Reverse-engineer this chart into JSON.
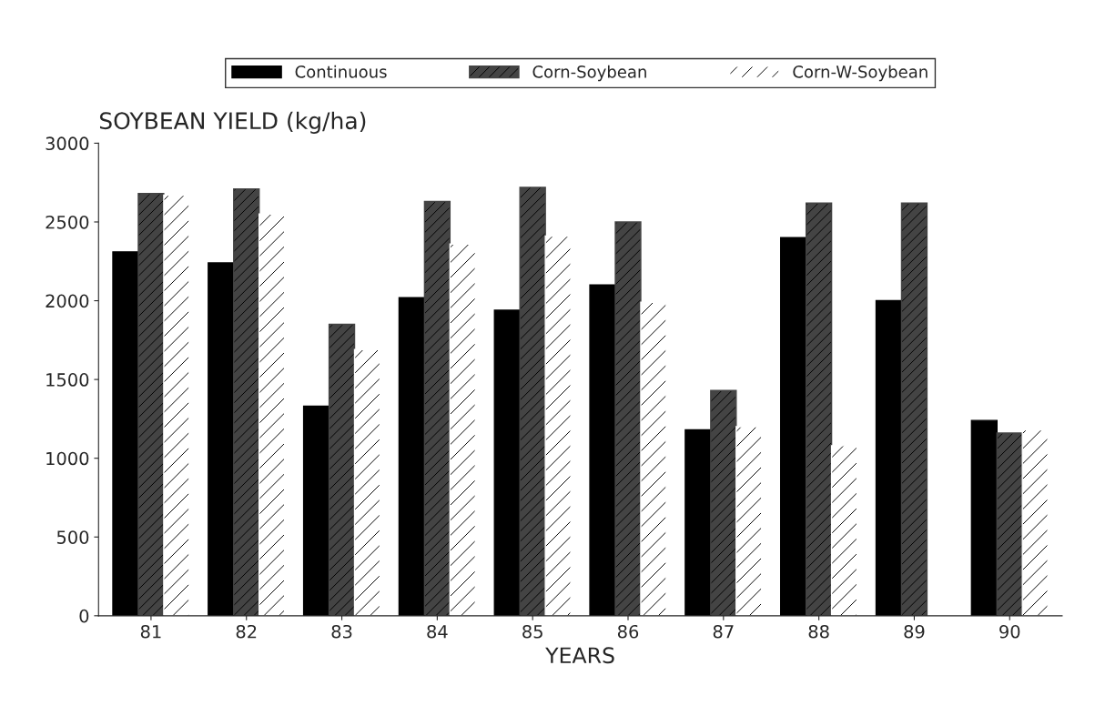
{
  "chart_data": {
    "type": "bar",
    "title": "SOYBEAN YIELD (kg/ha)",
    "xlabel": "YEARS",
    "categories": [
      "81",
      "82",
      "83",
      "84",
      "85",
      "86",
      "87",
      "88",
      "89",
      "90"
    ],
    "series": [
      {
        "name": "Continuous",
        "color": "#000000",
        "values": [
          2310,
          2240,
          1330,
          2020,
          1940,
          2100,
          1180,
          2400,
          2000,
          1240
        ]
      },
      {
        "name": "Corn-Soybean",
        "color": "#444444",
        "values": [
          2680,
          2710,
          1850,
          2630,
          2720,
          2500,
          1430,
          2620,
          2620,
          1160
        ]
      },
      {
        "name": "Corn-W-Soybean",
        "color": "#ffffff",
        "values": [
          2670,
          2550,
          1690,
          2360,
          2410,
          1990,
          1200,
          1080,
          null,
          1180
        ]
      }
    ],
    "ylim": [
      0,
      3000
    ],
    "yticks": [
      0,
      500,
      1000,
      1500,
      2000,
      2500,
      3000
    ],
    "grid": false,
    "legend": "top"
  }
}
